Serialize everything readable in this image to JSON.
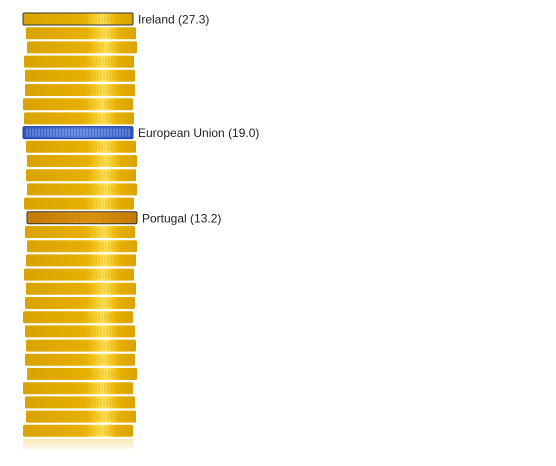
{
  "chart_data": {
    "type": "bar",
    "title": "",
    "xlabel": "",
    "ylabel": "",
    "unit_shown_per_coin": null,
    "labeled_entries": [
      {
        "name": "Ireland",
        "value": 27.3,
        "label": "Ireland (27.3)",
        "style": "gold-outlined"
      },
      {
        "name": "European Union",
        "value": 19.0,
        "label": "European Union (19.0)",
        "style": "blue"
      },
      {
        "name": "Portugal",
        "value": 13.2,
        "label": "Portugal (13.2)",
        "style": "orange-outlined"
      }
    ],
    "stack_scale_max": 27.3,
    "legend": "none",
    "grid": false
  },
  "colors": {
    "coin_gold": "#f0c400",
    "coin_gold_dark": "#d9a300",
    "coin_gold_light": "#ffe35a",
    "coin_blue": "#4a73d8",
    "coin_blue_dark": "#1d3f9e",
    "coin_orange": "#e09a10",
    "coin_orange_dark": "#a86500",
    "coin_outline": "#333333",
    "coin_fade": "#f6e7b8"
  }
}
